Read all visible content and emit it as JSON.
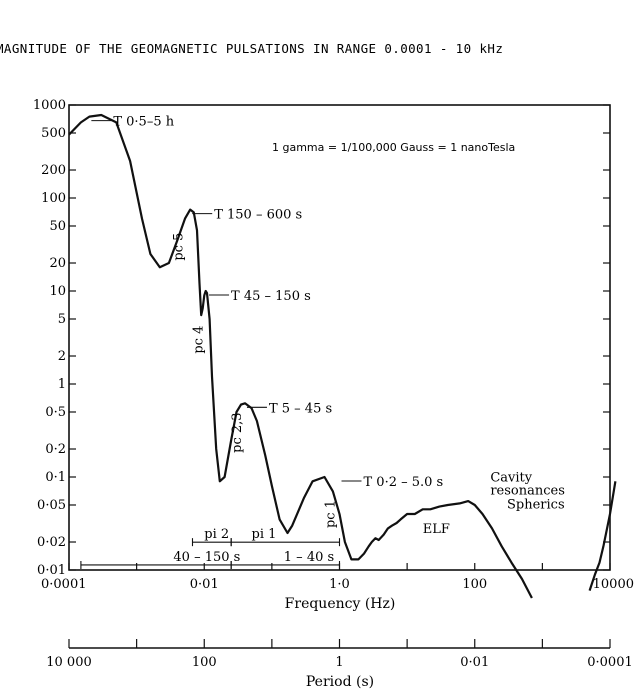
{
  "chart_data": {
    "type": "line",
    "title": "MAGNITUDE OF THE GEOMAGNETIC PULSATIONS IN RANGE 0.0001 - 10 kHz",
    "xlabel": "Frequency (Hz)",
    "x_scale": "log",
    "xlim": [
      0.0001,
      10000
    ],
    "x_ticks": [
      0.0001,
      0.01,
      1,
      100,
      10000
    ],
    "x_tick_labels": [
      "0·0001",
      "0·01",
      "1·0",
      "100",
      "10000"
    ],
    "ylabel": "",
    "y_scale": "log",
    "ylim": [
      0.01,
      1000
    ],
    "y_ticks": [
      1000,
      500,
      200,
      100,
      50,
      20,
      10,
      5,
      2,
      1,
      0.5,
      0.2,
      0.1,
      0.05,
      0.02,
      0.01
    ],
    "y_tick_labels": [
      "1000",
      "500",
      "200",
      "100",
      "50",
      "20",
      "10",
      "5",
      "2",
      "1",
      "0·5",
      "0·2",
      "0·1",
      "0·05",
      "0·02",
      "0·01"
    ],
    "period_axis": {
      "label": "Period (s)",
      "ticks": [
        10000,
        100,
        1,
        0.01,
        0.0001
      ],
      "tick_labels": [
        "10 000",
        "100",
        "1",
        "0·01",
        "0·0001"
      ]
    },
    "unit_note": "1 gamma = 1/100,000 Gauss = 1 nanoTesla",
    "series": [
      {
        "x": [
          0.0001,
          0.00015,
          0.0002,
          0.0003,
          0.0005,
          0.0008,
          0.0012,
          0.0016,
          0.0022,
          0.003,
          0.004,
          0.0052,
          0.0062,
          0.007,
          0.0078,
          0.0085,
          0.009,
          0.0095,
          0.01,
          0.0105,
          0.011,
          0.012,
          0.013,
          0.015,
          0.017,
          0.02,
          0.025,
          0.03,
          0.035,
          0.04,
          0.05,
          0.06,
          0.08,
          0.1,
          0.13,
          0.17,
          0.2,
          0.3,
          0.4,
          0.6,
          0.8,
          1.0,
          1.2,
          1.5,
          1.9,
          2.3,
          2.7,
          3.0,
          3.4,
          3.8,
          4.5,
          5.2,
          6,
          7,
          8,
          10,
          13,
          17,
          22,
          30,
          40,
          60,
          80,
          100,
          130,
          180,
          250,
          350,
          500,
          700
        ],
        "y": [
          480,
          650,
          750,
          780,
          650,
          250,
          60,
          25,
          18,
          20,
          35,
          60,
          75,
          70,
          45,
          12,
          5.5,
          6.5,
          9,
          10,
          9.5,
          5,
          1.2,
          0.2,
          0.09,
          0.1,
          0.25,
          0.5,
          0.6,
          0.62,
          0.55,
          0.4,
          0.17,
          0.08,
          0.035,
          0.025,
          0.03,
          0.06,
          0.09,
          0.1,
          0.07,
          0.04,
          0.02,
          0.013,
          0.013,
          0.015,
          0.018,
          0.02,
          0.022,
          0.021,
          0.024,
          0.028,
          0.03,
          0.032,
          0.035,
          0.04,
          0.04,
          0.045,
          0.045,
          0.048,
          0.05,
          0.052,
          0.055,
          0.05,
          0.04,
          0.028,
          0.018,
          0.012,
          0.008,
          0.005
        ]
      },
      {
        "x": [
          5000,
          6000,
          7000,
          8000,
          10000,
          12000
        ],
        "y": [
          0.006,
          0.009,
          0.012,
          0.018,
          0.04,
          0.09
        ]
      }
    ],
    "peak_labels": [
      {
        "text": "T 0·5–5 h",
        "x": 0.0002,
        "y": 750
      },
      {
        "text": "T 150 – 600 s",
        "x": 0.0062,
        "y": 75
      },
      {
        "text": "T 45 – 150 s",
        "x": 0.011,
        "y": 10
      },
      {
        "text": "T 5 – 45 s",
        "x": 0.04,
        "y": 0.62
      },
      {
        "text": "T 0·2 – 5.0 s",
        "x": 1.0,
        "y": 0.1
      }
    ],
    "vertical_labels": [
      {
        "text": "pc 5",
        "x": 0.0048,
        "y": 30
      },
      {
        "text": "pc 4",
        "x": 0.0095,
        "y": 3
      },
      {
        "text": "pc 2,3",
        "x": 0.035,
        "y": 0.3
      },
      {
        "text": "pc 1",
        "x": 0.85,
        "y": 0.04
      }
    ],
    "range_labels": [
      {
        "text": "pi 2",
        "x0": 0.0067,
        "x1": 0.025,
        "text_x": 0.01,
        "y": 0.022
      },
      {
        "text": "pi 1",
        "x0": 0.025,
        "x1": 1.0,
        "text_x": 0.05,
        "y": 0.022
      },
      {
        "text": "40 – 150 s",
        "x0": 0.00015,
        "x1": 0.025,
        "text_x": 0.0035,
        "y": 0.0125
      },
      {
        "text": "1 – 40 s",
        "x0": 0.025,
        "x1": 1.0,
        "text_x": 0.15,
        "y": 0.0125
      }
    ],
    "other_labels": [
      {
        "text": "Cavity",
        "x": 170,
        "y": 0.09
      },
      {
        "text": "resonances",
        "x": 170,
        "y": 0.065
      },
      {
        "text": "Spherics",
        "x": 300,
        "y": 0.046
      },
      {
        "text": "ELF",
        "x": 17,
        "y": 0.025
      }
    ]
  }
}
